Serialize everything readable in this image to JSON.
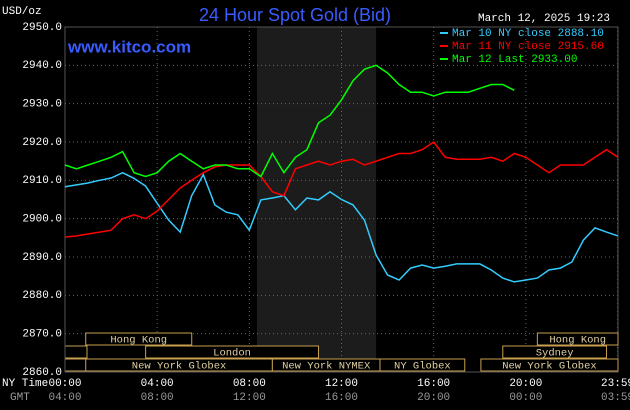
{
  "chart_data": {
    "type": "line",
    "title": "24 Hour Spot Gold (Bid)",
    "source": "www.kitco.com",
    "timestamp": "March 12, 2025 19:23",
    "y_unit": "USD/oz",
    "x_row_label": "NY Time",
    "x2_row_label": "GMT",
    "xlim": [
      0,
      24
    ],
    "ylim": [
      2860,
      2950
    ],
    "yticks": [
      {
        "value": 2860,
        "label": "2860.0"
      },
      {
        "value": 2870,
        "label": "2870.0"
      },
      {
        "value": 2880,
        "label": "2880.0"
      },
      {
        "value": 2890,
        "label": "2890.0"
      },
      {
        "value": 2900,
        "label": "2900.0"
      },
      {
        "value": 2910,
        "label": "2910.0"
      },
      {
        "value": 2920,
        "label": "2920.0"
      },
      {
        "value": 2930,
        "label": "2930.0"
      },
      {
        "value": 2940,
        "label": "2940.0"
      },
      {
        "value": 2950,
        "label": "2950.0"
      }
    ],
    "xticks": [
      {
        "value": 0,
        "label": "00:00"
      },
      {
        "value": 4,
        "label": "04:00"
      },
      {
        "value": 8,
        "label": "08:00"
      },
      {
        "value": 12,
        "label": "12:00"
      },
      {
        "value": 16,
        "label": "16:00"
      },
      {
        "value": 20,
        "label": "20:00"
      },
      {
        "value": 23.98,
        "label": "23:59"
      }
    ],
    "x2_labels": [
      "04:00",
      "08:00",
      "12:00",
      "16:00",
      "20:00",
      "00:00",
      "03:59"
    ],
    "grid": true,
    "shaded_region": [
      8.33,
      13.5
    ],
    "sessions": [
      {
        "name": "Hong Kong",
        "start": 0.9,
        "end": 5.5
      },
      {
        "name": "Hong Kong",
        "start": 20.5,
        "end": 24
      },
      {
        "name": "London",
        "start": 3.5,
        "end": 11
      },
      {
        "name": "Sydney",
        "start": 19,
        "end": 23.5
      },
      {
        "name": "New York Globex",
        "start": 0.9,
        "end": 9
      },
      {
        "name": "New York NYMEX",
        "start": 9,
        "end": 13.67
      },
      {
        "name": "NY Globex",
        "start": 13.67,
        "end": 17.35
      },
      {
        "name": "New York Globex",
        "start": 18.05,
        "end": 24
      }
    ],
    "x": [
      0,
      0.5,
      1,
      1.5,
      2,
      2.5,
      3,
      3.5,
      4,
      4.5,
      5,
      5.5,
      6,
      6.5,
      7,
      7.5,
      8,
      8.5,
      9,
      9.5,
      10,
      10.5,
      11,
      11.5,
      12,
      12.5,
      13,
      13.5,
      14,
      14.5,
      15,
      15.5,
      16,
      16.5,
      17,
      17.5,
      18,
      18.5,
      19,
      19.5,
      20,
      20.5,
      21,
      21.5,
      22,
      22.5,
      23,
      23.5,
      24
    ],
    "series": [
      {
        "name": "Mar 10 NY close 2888.10",
        "color": "#33ccff",
        "values": [
          2908.3,
          2908.8,
          2909.3,
          2910,
          2910.6,
          2912,
          2910.5,
          2908.5,
          2904,
          2899.6,
          2896.5,
          2906,
          2911.5,
          2903.6,
          2901.7,
          2901,
          2897,
          2904.9,
          2905.4,
          2906,
          2902.3,
          2905.4,
          2904.9,
          2907,
          2905,
          2903.6,
          2899.6,
          2890.5,
          2885.3,
          2884,
          2887.1,
          2887.9,
          2887.1,
          2887.6,
          2888.2,
          2888.2,
          2888.2,
          2886.6,
          2884.5,
          2883.5,
          2884,
          2884.5,
          2886.6,
          2887.1,
          2888.7,
          2894.4,
          2897.6,
          2896.5,
          2895.5
        ]
      },
      {
        "name": "Mar 11 NY close 2915.60",
        "color": "#ff0000",
        "values": [
          2895.2,
          2895.5,
          2896,
          2896.5,
          2897,
          2900,
          2901,
          2900,
          2902,
          2905,
          2908,
          2910,
          2912,
          2913.5,
          2914,
          2914,
          2914,
          2911,
          2907,
          2906,
          2913,
          2914,
          2915,
          2914,
          2915,
          2915.5,
          2914,
          2915,
          2916,
          2917,
          2917,
          2918,
          2920,
          2916,
          2915.5,
          2915.5,
          2915.5,
          2916,
          2915,
          2917,
          2916,
          2914,
          2912,
          2914,
          2914,
          2914,
          2916,
          2918,
          2916
        ]
      },
      {
        "name": "Mar 12 Last 2933.00",
        "color": "#00ff00",
        "values": [
          2914,
          2913,
          2914,
          2915,
          2916,
          2917.5,
          2912,
          2911,
          2912,
          2915,
          2917,
          2915,
          2913,
          2914,
          2914,
          2913,
          2913,
          2911,
          2917,
          2912,
          2916,
          2918,
          2925,
          2927,
          2931,
          2936,
          2939,
          2940,
          2938,
          2935,
          2933,
          2933,
          2932,
          2933,
          2933,
          2933,
          2934,
          2935,
          2935,
          2933.5,
          null,
          null,
          null,
          null,
          null,
          null,
          null,
          null,
          null
        ]
      }
    ]
  }
}
